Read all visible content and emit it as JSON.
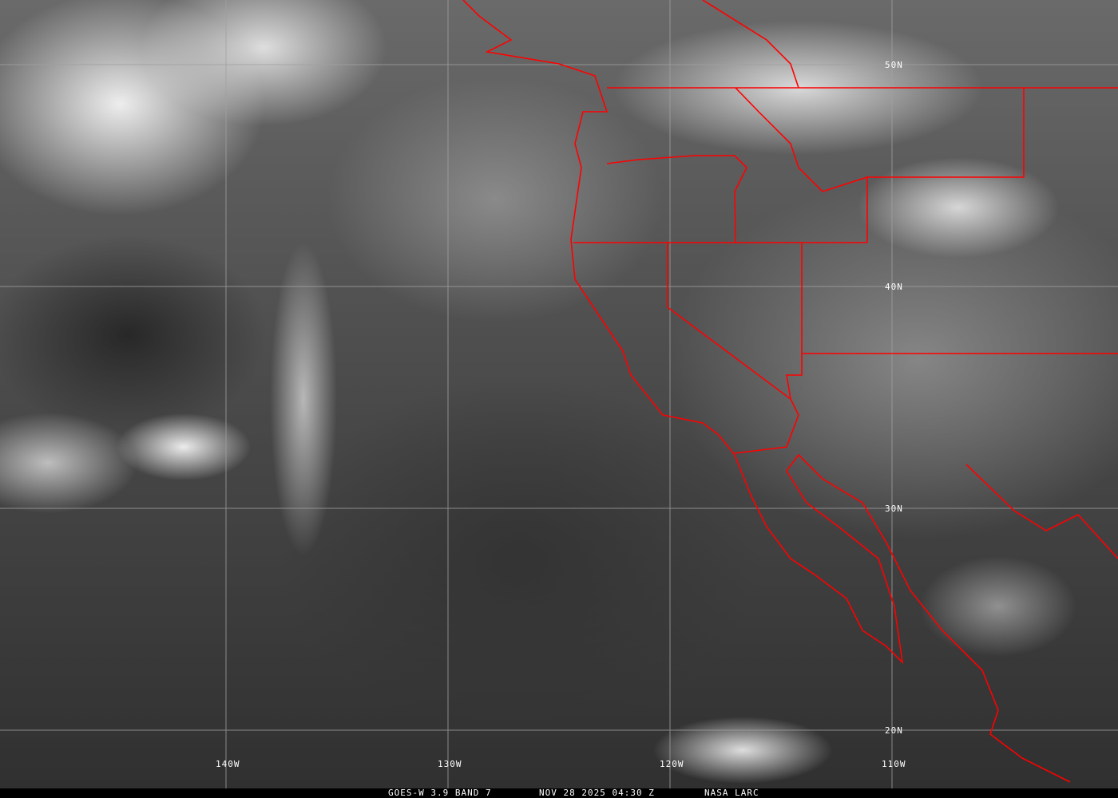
{
  "map": {
    "grid": {
      "latitudes": [
        "50N",
        "40N",
        "30N",
        "20N"
      ],
      "longitudes": [
        "140W",
        "130W",
        "120W",
        "110W"
      ]
    },
    "colors": {
      "boundaries": "#ff0000",
      "grid": "#a0a0a0",
      "labels": "#ffffff"
    }
  },
  "caption": {
    "product": "GOES-W 3.9 BAND 7",
    "datetime": "NOV 28 2025 04:30 Z",
    "source": "NASA LARC"
  }
}
